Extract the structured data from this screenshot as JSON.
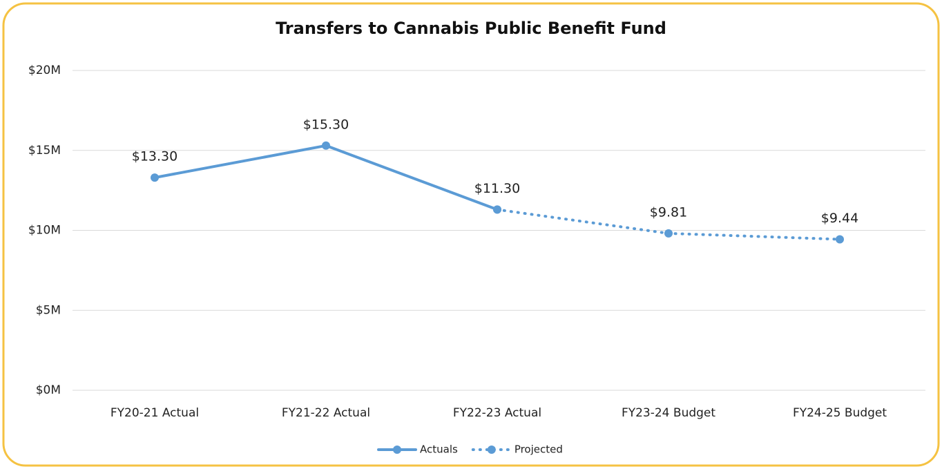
{
  "chart_data": {
    "type": "line",
    "title": "Transfers to Cannabis Public Benefit Fund",
    "categories": [
      "FY20-21 Actual",
      "FY21-22 Actual",
      "FY22-23 Actual",
      "FY23-24 Budget",
      "FY24-25 Budget"
    ],
    "series": [
      {
        "name": "Actuals",
        "color": "#5b9bd5",
        "line_style": "solid",
        "values": [
          13.3,
          15.3,
          11.3,
          null,
          null
        ],
        "value_labels": [
          "$13.30",
          "$15.30",
          "$11.30",
          null,
          null
        ]
      },
      {
        "name": "Projected",
        "color": "#5b9bd5",
        "line_style": "dotted",
        "values": [
          null,
          null,
          11.3,
          9.81,
          9.44
        ],
        "value_labels": [
          null,
          null,
          null,
          "$9.81",
          "$9.44"
        ]
      }
    ],
    "ylim": [
      0,
      20
    ],
    "yticks": [
      {
        "value": 0,
        "label": "$0M"
      },
      {
        "value": 5,
        "label": "$5M"
      },
      {
        "value": 10,
        "label": "$10M"
      },
      {
        "value": 15,
        "label": "$15M"
      },
      {
        "value": 20,
        "label": "$20M"
      }
    ],
    "grid": true,
    "legend": "bottom"
  }
}
